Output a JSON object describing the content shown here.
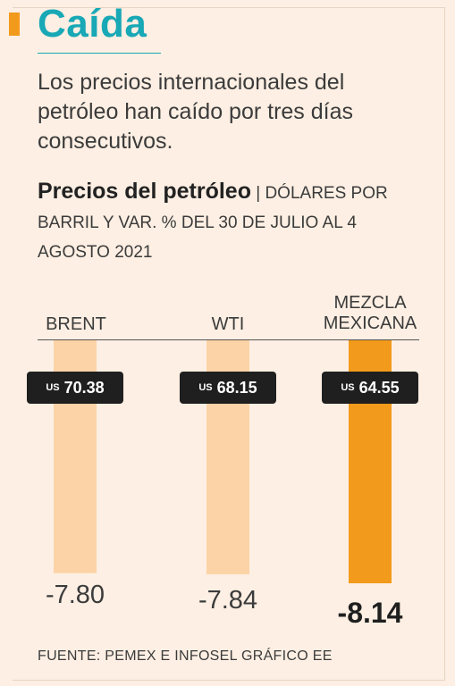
{
  "header": {
    "title": "Caída",
    "lede": "Los precios internacionales del petróleo han caído por tres días consecutivos."
  },
  "chart_data": {
    "type": "bar",
    "title": "Precios del petróleo",
    "subtitle": "| DÓLARES POR BARRIL Y VAR. % DEL 30 DE JULIO AL 4 AGOSTO 2021",
    "categories": [
      "BRENT",
      "WTI",
      "MEZCLA MEXICANA"
    ],
    "series": [
      {
        "name": "Precio",
        "values": [
          70.38,
          68.15,
          64.55
        ]
      },
      {
        "name": "Var. %",
        "values": [
          -7.8,
          -7.84,
          -8.14
        ]
      }
    ],
    "price_labels": [
      "70.38",
      "68.15",
      "64.55"
    ],
    "pct_labels": [
      "-7.80",
      "-7.84",
      "-8.14"
    ],
    "currency": "US",
    "highlight_index": 2,
    "pct_range": [
      0,
      -8.14
    ],
    "colors": {
      "bar": "#fcd3a6",
      "highlight": "#f29a1b",
      "pill": "#1f1f1f"
    }
  },
  "footer": {
    "source": "FUENTE: PEMEX E INFOSEL GRÁFICO EE"
  }
}
